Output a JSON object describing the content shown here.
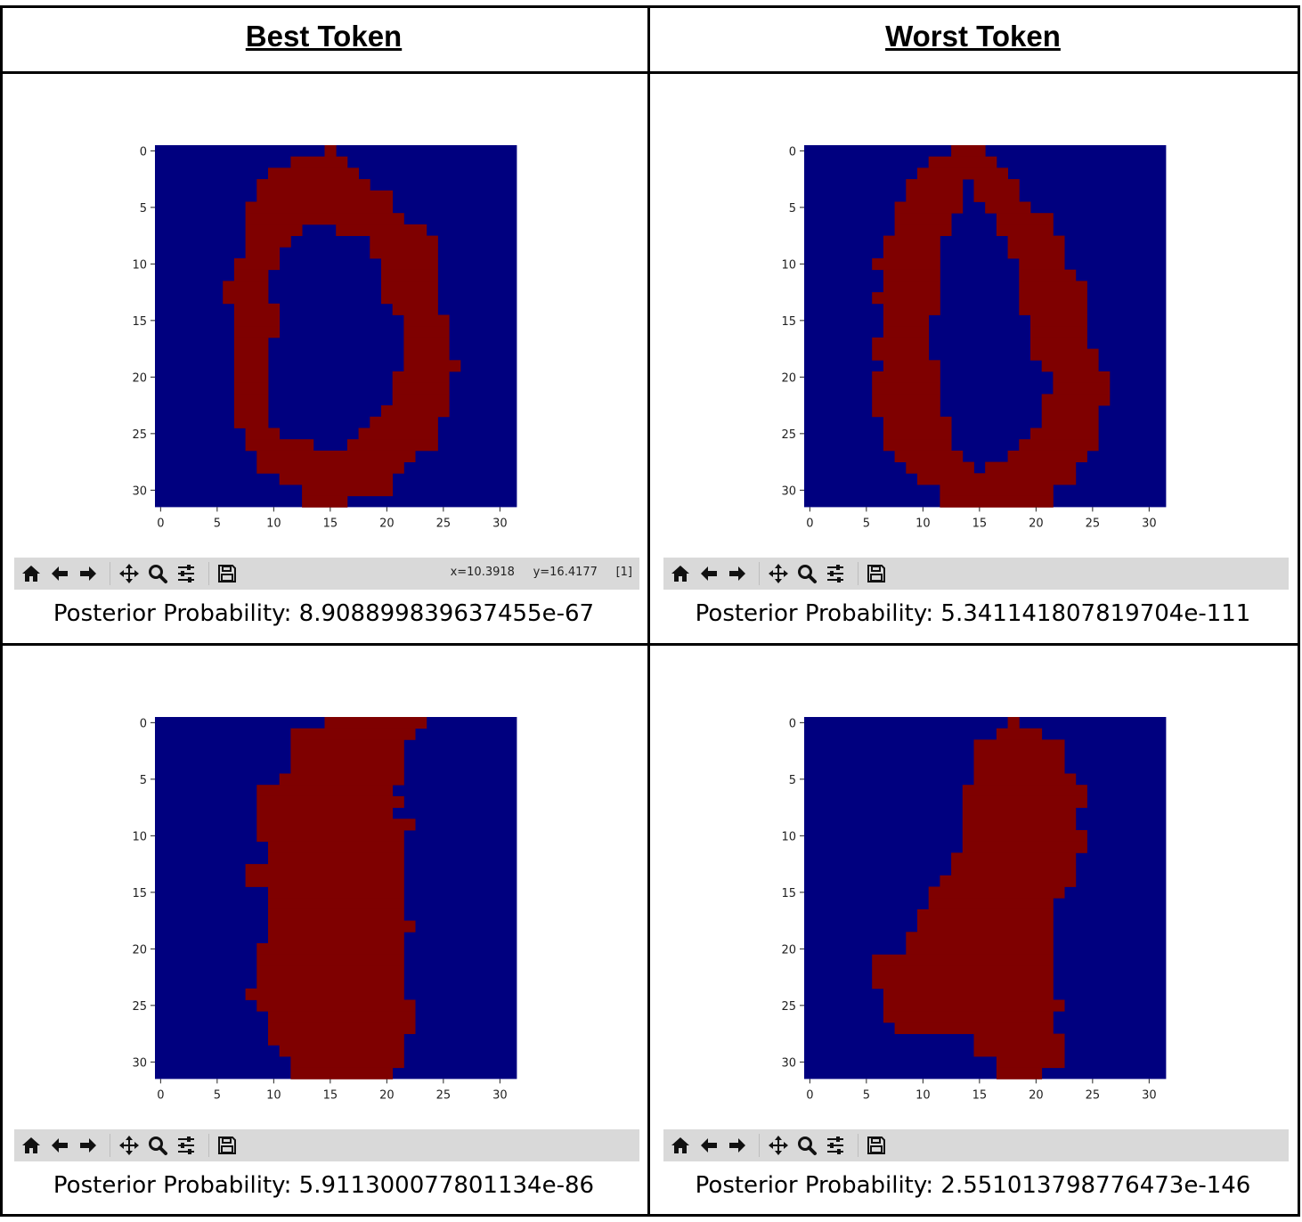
{
  "headers": {
    "best": "Best Token",
    "worst": "Worst Token"
  },
  "colors": {
    "background_cell": "#00007f",
    "foreground_cell": "#7f0000",
    "toolbar": "#d9d9d9"
  },
  "toolbar_icons": [
    "home-icon",
    "back-icon",
    "forward-icon",
    "pan-icon",
    "zoom-icon",
    "configure-subplots-icon",
    "save-icon"
  ],
  "panels": [
    {
      "id": "best-top",
      "posterior_label": "Posterior Probability: 8.908899839637455e-67",
      "coords": "x=10.3918     y=16.4177     [1]",
      "chart_data": {
        "type": "heatmap",
        "colormap": "jet",
        "xlim": [
          0,
          31
        ],
        "ylim": [
          31,
          0
        ],
        "xticks": [
          "0",
          "5",
          "10",
          "15",
          "20",
          "25",
          "30"
        ],
        "yticks": [
          "0",
          "5",
          "10",
          "15",
          "20",
          "25",
          "30"
        ],
        "rows": [
          [
            15,
            15
          ],
          [
            12,
            16
          ],
          [
            10,
            17
          ],
          [
            9,
            18
          ],
          [
            9,
            20
          ],
          [
            8,
            20
          ],
          [
            8,
            21
          ],
          [
            8,
            12,
            16,
            23
          ],
          [
            8,
            11,
            19,
            24
          ],
          [
            8,
            10,
            19,
            24
          ],
          [
            7,
            10,
            20,
            24
          ],
          [
            7,
            9,
            20,
            24
          ],
          [
            6,
            9,
            20,
            24
          ],
          [
            6,
            9,
            20,
            24
          ],
          [
            7,
            10,
            21,
            24
          ],
          [
            7,
            10,
            22,
            25
          ],
          [
            7,
            10,
            22,
            25
          ],
          [
            7,
            9,
            22,
            25
          ],
          [
            7,
            9,
            22,
            25
          ],
          [
            7,
            9,
            22,
            26
          ],
          [
            7,
            9,
            21,
            25
          ],
          [
            7,
            9,
            21,
            25
          ],
          [
            7,
            9,
            21,
            25
          ],
          [
            7,
            9,
            20,
            25
          ],
          [
            7,
            9,
            19,
            24
          ],
          [
            8,
            10,
            18,
            24
          ],
          [
            8,
            13,
            17,
            24
          ],
          [
            9,
            22
          ],
          [
            9,
            21
          ],
          [
            11,
            20
          ],
          [
            13,
            20
          ],
          [
            13,
            16
          ]
        ]
      }
    },
    {
      "id": "worst-top",
      "posterior_label": "Posterior Probability: 5.341141807819704e-111",
      "coords": "",
      "chart_data": {
        "type": "heatmap",
        "colormap": "jet",
        "xlim": [
          0,
          31
        ],
        "ylim": [
          31,
          0
        ],
        "xticks": [
          "0",
          "5",
          "10",
          "15",
          "20",
          "25",
          "30"
        ],
        "yticks": [
          "0",
          "5",
          "10",
          "15",
          "20",
          "25",
          "30"
        ],
        "rows": [
          [
            13,
            15
          ],
          [
            11,
            16
          ],
          [
            10,
            17
          ],
          [
            9,
            13,
            15,
            18
          ],
          [
            9,
            13,
            15,
            18
          ],
          [
            8,
            13,
            16,
            19
          ],
          [
            8,
            12,
            17,
            21
          ],
          [
            8,
            12,
            17,
            21
          ],
          [
            7,
            11,
            18,
            22
          ],
          [
            7,
            11,
            18,
            22
          ],
          [
            6,
            11,
            19,
            22
          ],
          [
            7,
            11,
            19,
            23
          ],
          [
            7,
            11,
            19,
            24
          ],
          [
            6,
            11,
            19,
            24
          ],
          [
            7,
            11,
            19,
            24
          ],
          [
            7,
            10,
            20,
            24
          ],
          [
            7,
            10,
            20,
            24
          ],
          [
            6,
            10,
            20,
            24
          ],
          [
            6,
            10,
            20,
            25
          ],
          [
            7,
            11,
            21,
            25
          ],
          [
            6,
            11,
            22,
            26
          ],
          [
            6,
            11,
            22,
            26
          ],
          [
            6,
            11,
            21,
            26
          ],
          [
            6,
            11,
            21,
            25
          ],
          [
            7,
            12,
            21,
            25
          ],
          [
            7,
            12,
            20,
            25
          ],
          [
            7,
            12,
            19,
            25
          ],
          [
            8,
            13,
            18,
            24
          ],
          [
            9,
            14,
            16,
            23
          ],
          [
            10,
            23
          ],
          [
            12,
            21
          ],
          [
            12,
            21
          ]
        ]
      }
    },
    {
      "id": "best-bottom",
      "posterior_label": "Posterior Probability: 5.911300077801134e-86",
      "coords": "",
      "chart_data": {
        "type": "heatmap",
        "colormap": "jet",
        "xlim": [
          0,
          31
        ],
        "ylim": [
          31,
          0
        ],
        "xticks": [
          "0",
          "5",
          "10",
          "15",
          "20",
          "25",
          "30"
        ],
        "yticks": [
          "0",
          "5",
          "10",
          "15",
          "20",
          "25",
          "30"
        ],
        "rows": [
          [
            15,
            23
          ],
          [
            12,
            22
          ],
          [
            12,
            21
          ],
          [
            12,
            21
          ],
          [
            12,
            21
          ],
          [
            11,
            21
          ],
          [
            9,
            20
          ],
          [
            9,
            21
          ],
          [
            9,
            20
          ],
          [
            9,
            22
          ],
          [
            9,
            21
          ],
          [
            10,
            21
          ],
          [
            10,
            21
          ],
          [
            8,
            21
          ],
          [
            8,
            21
          ],
          [
            10,
            21
          ],
          [
            10,
            21
          ],
          [
            10,
            21
          ],
          [
            10,
            22
          ],
          [
            10,
            21
          ],
          [
            9,
            21
          ],
          [
            9,
            21
          ],
          [
            9,
            21
          ],
          [
            9,
            21
          ],
          [
            8,
            21
          ],
          [
            9,
            22
          ],
          [
            10,
            22
          ],
          [
            10,
            22
          ],
          [
            10,
            21
          ],
          [
            11,
            21
          ],
          [
            12,
            21
          ],
          [
            12,
            20
          ]
        ]
      }
    },
    {
      "id": "worst-bottom",
      "posterior_label": "Posterior Probability: 2.551013798776473e-146",
      "coords": "",
      "chart_data": {
        "type": "heatmap",
        "colormap": "jet",
        "xlim": [
          0,
          31
        ],
        "ylim": [
          31,
          0
        ],
        "xticks": [
          "0",
          "5",
          "10",
          "15",
          "20",
          "25",
          "30"
        ],
        "yticks": [
          "0",
          "5",
          "10",
          "15",
          "20",
          "25",
          "30"
        ],
        "rows": [
          [
            18,
            18
          ],
          [
            17,
            20
          ],
          [
            15,
            22
          ],
          [
            15,
            22
          ],
          [
            15,
            22
          ],
          [
            15,
            23
          ],
          [
            14,
            24
          ],
          [
            14,
            24
          ],
          [
            14,
            23
          ],
          [
            14,
            23
          ],
          [
            14,
            24
          ],
          [
            14,
            24
          ],
          [
            13,
            23
          ],
          [
            13,
            23
          ],
          [
            12,
            23
          ],
          [
            11,
            22
          ],
          [
            11,
            21
          ],
          [
            10,
            21
          ],
          [
            10,
            21
          ],
          [
            9,
            21
          ],
          [
            9,
            21
          ],
          [
            6,
            21
          ],
          [
            6,
            21
          ],
          [
            6,
            21
          ],
          [
            7,
            21
          ],
          [
            7,
            22
          ],
          [
            7,
            21
          ],
          [
            8,
            21
          ],
          [
            15,
            22
          ],
          [
            15,
            22
          ],
          [
            17,
            22
          ],
          [
            17,
            20
          ]
        ]
      }
    }
  ]
}
